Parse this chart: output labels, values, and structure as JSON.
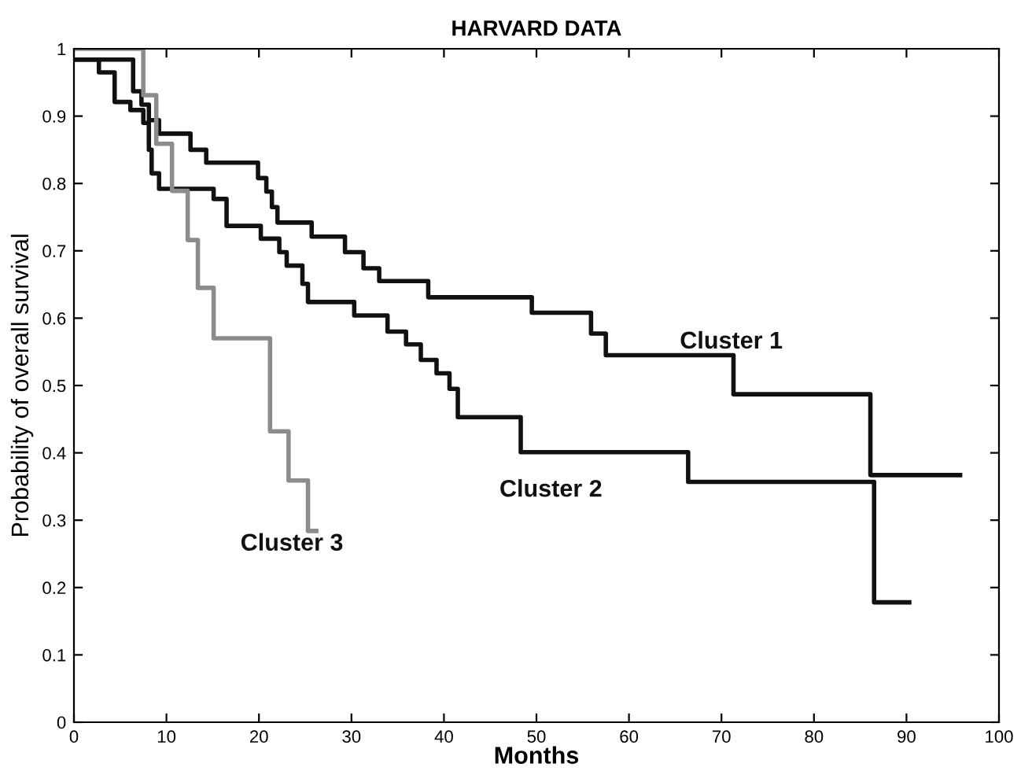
{
  "chart_data": {
    "type": "step",
    "title": "HARVARD DATA",
    "xlabel": "Months",
    "ylabel": "Probability of overall survival",
    "xlim": [
      0,
      100
    ],
    "xticks": [
      0,
      10,
      20,
      30,
      40,
      50,
      60,
      70,
      80,
      90,
      100
    ],
    "ylim": [
      0,
      1
    ],
    "yticks": [
      0,
      0.1,
      0.2,
      0.3,
      0.4,
      0.5,
      0.6,
      0.7,
      0.8,
      0.9,
      1
    ],
    "grid": false,
    "legend": false,
    "marker": "none",
    "line_style": "solid",
    "series": [
      {
        "name": "Cluster 1",
        "color": "#111111",
        "x": [
          0,
          6.4,
          7.3,
          8.1,
          9.2,
          12.6,
          14.3,
          19.9,
          20.8,
          21.4,
          22,
          25.7,
          29.3,
          31.3,
          33,
          38.3,
          49.5,
          55.9,
          57.5,
          71.3,
          86.1,
          95.8
        ],
        "values": [
          0.984,
          0.937,
          0.917,
          0.894,
          0.874,
          0.85,
          0.831,
          0.808,
          0.788,
          0.765,
          0.742,
          0.721,
          0.698,
          0.674,
          0.655,
          0.631,
          0.608,
          0.577,
          0.545,
          0.487,
          0.367,
          0.367
        ]
      },
      {
        "name": "Cluster 2",
        "color": "#111111",
        "x": [
          0,
          2.7,
          4.4,
          6.1,
          7.5,
          8.1,
          8.4,
          9.2,
          15.1,
          16.5,
          20.2,
          22.2,
          23,
          24.7,
          25.3,
          30.3,
          33.9,
          35.9,
          37.5,
          39.2,
          40.6,
          41.5,
          48.3,
          66.4,
          86.5,
          90.3
        ],
        "values": [
          0.984,
          0.965,
          0.921,
          0.909,
          0.89,
          0.85,
          0.815,
          0.792,
          0.777,
          0.737,
          0.718,
          0.698,
          0.678,
          0.651,
          0.624,
          0.604,
          0.58,
          0.561,
          0.538,
          0.518,
          0.495,
          0.453,
          0.401,
          0.357,
          0.178,
          0.178
        ]
      },
      {
        "name": "Cluster 3",
        "color": "#8c8c8c",
        "x": [
          0,
          7.5,
          8.9,
          10.6,
          12.3,
          13.4,
          15.1,
          21.2,
          23.2,
          25.3,
          26.2
        ],
        "values": [
          1,
          0.931,
          0.859,
          0.789,
          0.716,
          0.645,
          0.57,
          0.432,
          0.359,
          0.284,
          0.284
        ]
      }
    ]
  }
}
